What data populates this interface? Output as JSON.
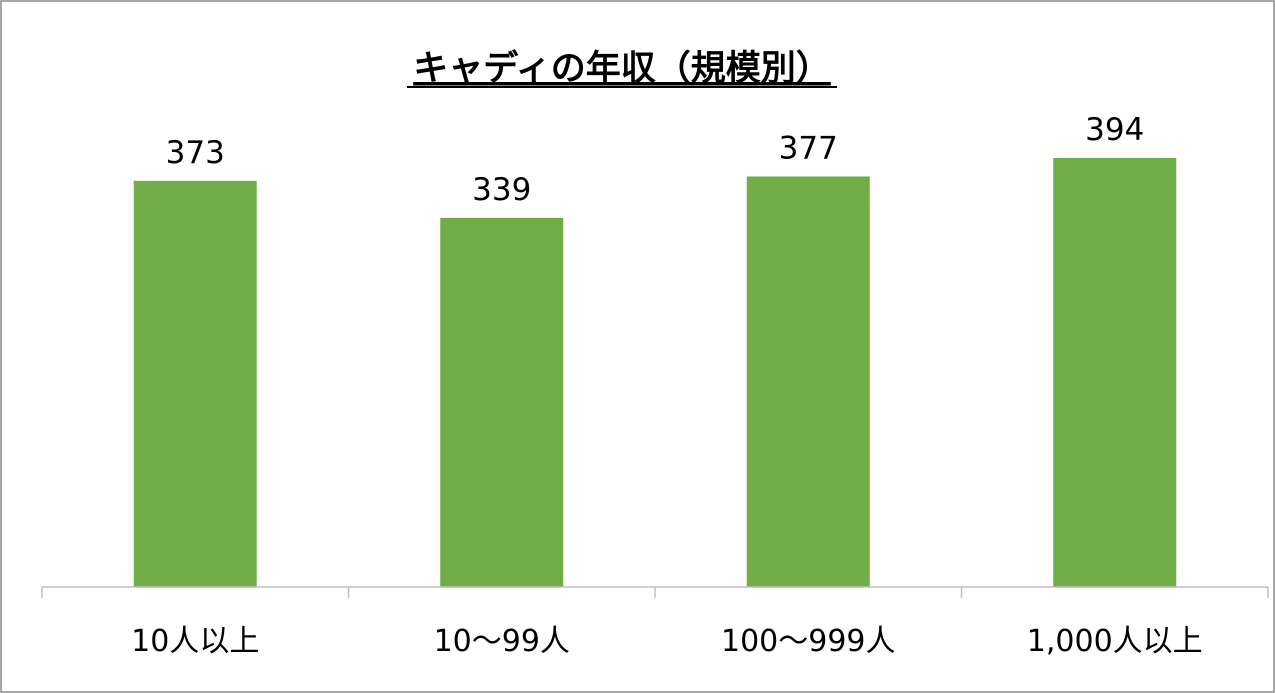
{
  "chart_data": {
    "type": "bar",
    "title": "キャディの年収（規模別）",
    "categories": [
      "10人以上",
      "10〜99人",
      "100〜999人",
      "1,000人以上"
    ],
    "values": [
      373,
      339,
      377,
      394
    ],
    "data_labels": [
      "373",
      "339",
      "377",
      "394"
    ],
    "xlabel": "",
    "ylabel": "",
    "ylim": [
      0,
      450
    ],
    "y_axis_visible": false,
    "grid": false,
    "legend": "none",
    "bar_color": "#70AD47",
    "border_color": "#8C8C8C"
  }
}
